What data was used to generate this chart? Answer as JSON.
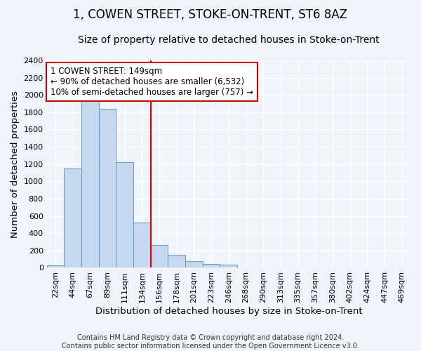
{
  "title": "1, COWEN STREET, STOKE-ON-TRENT, ST6 8AZ",
  "subtitle": "Size of property relative to detached houses in Stoke-on-Trent",
  "xlabel": "Distribution of detached houses by size in Stoke-on-Trent",
  "ylabel": "Number of detached properties",
  "categories": [
    "22sqm",
    "44sqm",
    "67sqm",
    "89sqm",
    "111sqm",
    "134sqm",
    "156sqm",
    "178sqm",
    "201sqm",
    "223sqm",
    "246sqm",
    "268sqm",
    "290sqm",
    "313sqm",
    "335sqm",
    "357sqm",
    "380sqm",
    "402sqm",
    "424sqm",
    "447sqm",
    "469sqm"
  ],
  "values": [
    30,
    1150,
    1950,
    1840,
    1225,
    520,
    265,
    150,
    75,
    45,
    35,
    5,
    5,
    5,
    5,
    5,
    5,
    5,
    5,
    5,
    5
  ],
  "bar_color": "#c5d8f0",
  "bar_edge_color": "#6699cc",
  "vline_x_index": 6,
  "vline_color": "#cc0000",
  "annotation_text": "1 COWEN STREET: 149sqm\n← 90% of detached houses are smaller (6,532)\n10% of semi-detached houses are larger (757) →",
  "annotation_box_color": "white",
  "annotation_box_edge": "#cc0000",
  "ylim": [
    0,
    2400
  ],
  "yticks": [
    0,
    200,
    400,
    600,
    800,
    1000,
    1200,
    1400,
    1600,
    1800,
    2000,
    2200,
    2400
  ],
  "footnote": "Contains HM Land Registry data © Crown copyright and database right 2024.\nContains public sector information licensed under the Open Government Licence v3.0.",
  "background_color": "#f0f4fa",
  "grid_color": "white",
  "title_fontsize": 12,
  "subtitle_fontsize": 10,
  "axis_label_fontsize": 9.5,
  "tick_fontsize": 8,
  "footnote_fontsize": 7,
  "annotation_fontsize": 8.5
}
